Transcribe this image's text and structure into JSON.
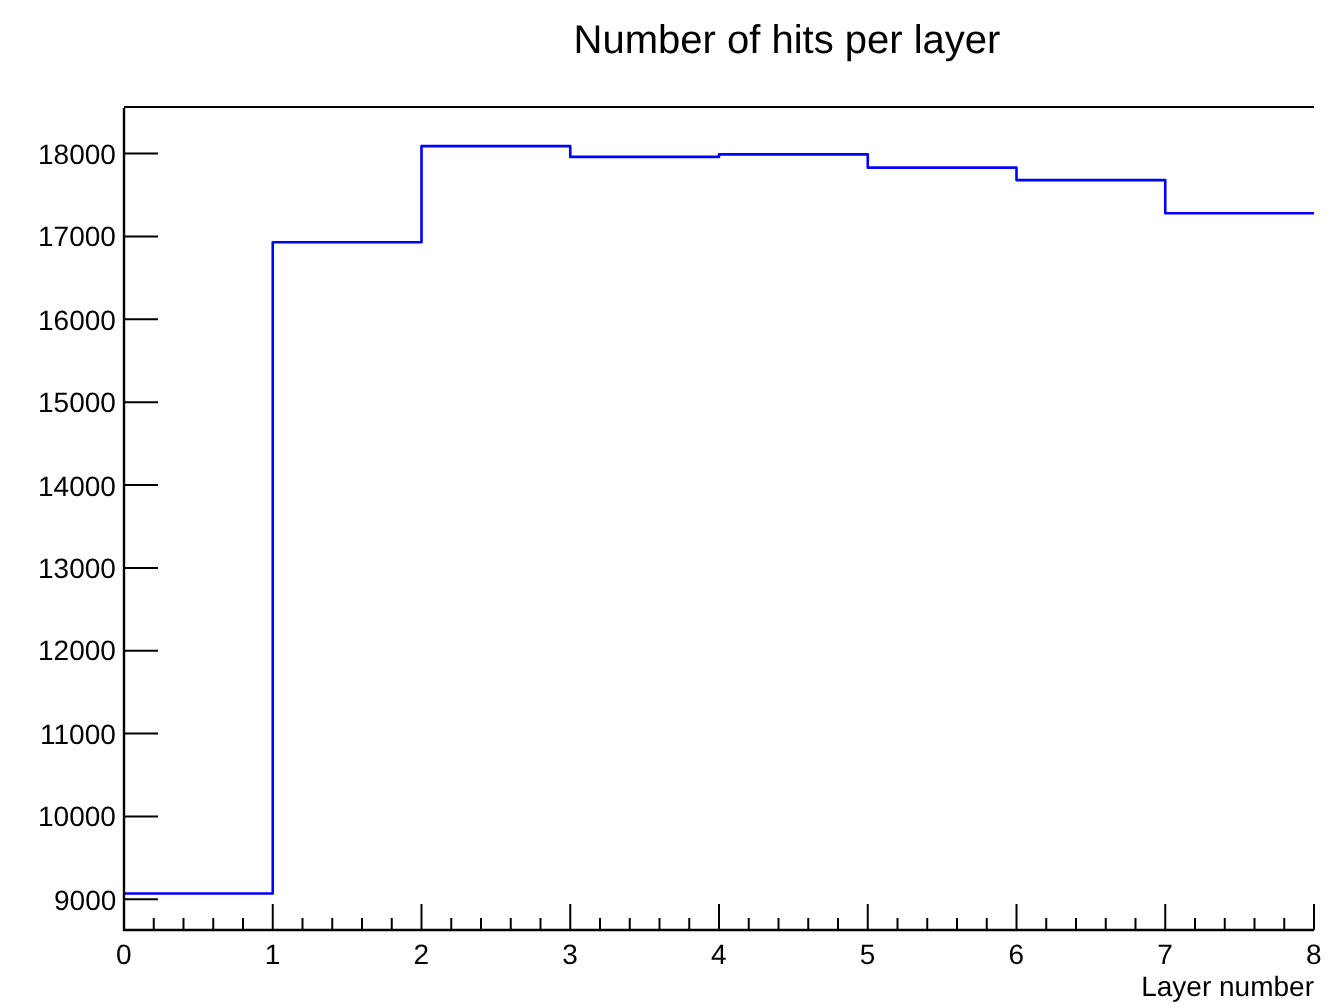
{
  "chart_data": {
    "type": "histogram",
    "title": "Number of hits per layer",
    "xlabel": "Layer number",
    "bins": [
      0,
      1,
      2,
      3,
      4,
      5,
      6,
      7,
      8
    ],
    "values": [
      9070,
      16930,
      18090,
      17960,
      17990,
      17830,
      17680,
      17280
    ],
    "color": "#0000ff",
    "xlim": [
      0,
      8
    ],
    "ylim": [
      8630,
      18550
    ],
    "xticks": [
      0,
      1,
      2,
      3,
      4,
      5,
      6,
      7,
      8
    ],
    "yticks": [
      9000,
      10000,
      11000,
      12000,
      13000,
      14000,
      15000,
      16000,
      17000,
      18000
    ],
    "grid": false,
    "legend": false
  }
}
